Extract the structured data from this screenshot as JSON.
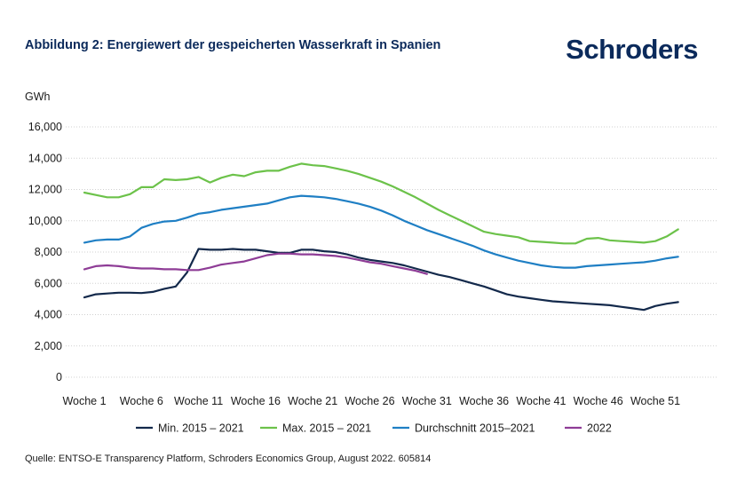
{
  "header": {
    "title": "Abbildung 2: Energiewert der gespeicherten Wasserkraft in Spanien",
    "brand": "Schroders"
  },
  "footer": {
    "source": "Quelle: ENTSO-E Transparency Platform, Schroders Economics Group, August 2022. 605814"
  },
  "chart_data": {
    "type": "line",
    "title": "Abbildung 2: Energiewert der gespeicherten Wasserkraft in Spanien",
    "ylabel": "GWh",
    "xlabel": "",
    "ylim": [
      0,
      16000
    ],
    "y_ticks": [
      "0",
      "2,000",
      "4,000",
      "6,000",
      "8,000",
      "10,000",
      "12,000",
      "14,000",
      "16,000"
    ],
    "y_tick_values": [
      0,
      2000,
      4000,
      6000,
      8000,
      10000,
      12000,
      14000,
      16000
    ],
    "x_range": [
      1,
      53
    ],
    "x_ticks": [
      "Woche 1",
      "Woche 6",
      "Woche 11",
      "Woche 16",
      "Woche 21",
      "Woche 26",
      "Woche 31",
      "Woche 36",
      "Woche 41",
      "Woche 46",
      "Woche 51"
    ],
    "x_tick_values": [
      1,
      6,
      11,
      16,
      21,
      26,
      31,
      36,
      41,
      46,
      51
    ],
    "grid": "horizontal",
    "legend_position": "bottom",
    "series": [
      {
        "name": "Min. 2015 – 2021",
        "color": "#13294b",
        "x": [
          1,
          2,
          3,
          4,
          5,
          6,
          7,
          8,
          9,
          10,
          11,
          12,
          13,
          14,
          15,
          16,
          17,
          18,
          19,
          20,
          21,
          22,
          23,
          24,
          25,
          26,
          27,
          28,
          29,
          30,
          31,
          32,
          33,
          34,
          35,
          36,
          37,
          38,
          39,
          40,
          41,
          42,
          43,
          44,
          45,
          46,
          47,
          48,
          49,
          50,
          51,
          52,
          53
        ],
        "values": [
          5100,
          5300,
          5350,
          5400,
          5400,
          5380,
          5450,
          5650,
          5800,
          6700,
          8200,
          8150,
          8150,
          8200,
          8150,
          8150,
          8050,
          7950,
          7950,
          8150,
          8150,
          8050,
          8000,
          7850,
          7650,
          7500,
          7400,
          7300,
          7150,
          6950,
          6750,
          6550,
          6400,
          6200,
          6000,
          5800,
          5550,
          5300,
          5150,
          5050,
          4950,
          4850,
          4800,
          4750,
          4700,
          4650,
          4600,
          4500,
          4400,
          4300,
          4550,
          4700,
          4800
        ]
      },
      {
        "name": "Max. 2015 – 2021",
        "color": "#6cc24a",
        "x": [
          1,
          2,
          3,
          4,
          5,
          6,
          7,
          8,
          9,
          10,
          11,
          12,
          13,
          14,
          15,
          16,
          17,
          18,
          19,
          20,
          21,
          22,
          23,
          24,
          25,
          26,
          27,
          28,
          29,
          30,
          31,
          32,
          33,
          34,
          35,
          36,
          37,
          38,
          39,
          40,
          41,
          42,
          43,
          44,
          45,
          46,
          47,
          48,
          49,
          50,
          51,
          52,
          53
        ],
        "values": [
          11800,
          11650,
          11500,
          11500,
          11700,
          12150,
          12150,
          12650,
          12600,
          12650,
          12800,
          12450,
          12750,
          12950,
          12850,
          13100,
          13200,
          13200,
          13450,
          13650,
          13550,
          13500,
          13350,
          13200,
          13000,
          12750,
          12500,
          12200,
          11850,
          11500,
          11100,
          10700,
          10350,
          10000,
          9650,
          9300,
          9150,
          9050,
          8950,
          8700,
          8650,
          8600,
          8550,
          8550,
          8850,
          8900,
          8750,
          8700,
          8650,
          8600,
          8700,
          9000,
          9450
        ]
      },
      {
        "name": "Durchschnitt 2015–2021",
        "color": "#1f7fc4",
        "x": [
          1,
          2,
          3,
          4,
          5,
          6,
          7,
          8,
          9,
          10,
          11,
          12,
          13,
          14,
          15,
          16,
          17,
          18,
          19,
          20,
          21,
          22,
          23,
          24,
          25,
          26,
          27,
          28,
          29,
          30,
          31,
          32,
          33,
          34,
          35,
          36,
          37,
          38,
          39,
          40,
          41,
          42,
          43,
          44,
          45,
          46,
          47,
          48,
          49,
          50,
          51,
          52,
          53
        ],
        "values": [
          8600,
          8750,
          8800,
          8800,
          9000,
          9550,
          9800,
          9950,
          10000,
          10200,
          10450,
          10550,
          10700,
          10800,
          10900,
          11000,
          11100,
          11300,
          11500,
          11600,
          11550,
          11500,
          11400,
          11250,
          11100,
          10900,
          10650,
          10350,
          10000,
          9700,
          9400,
          9150,
          8900,
          8650,
          8400,
          8100,
          7850,
          7650,
          7450,
          7300,
          7150,
          7050,
          7000,
          7000,
          7100,
          7150,
          7200,
          7250,
          7300,
          7350,
          7450,
          7600,
          7700
        ]
      },
      {
        "name": "2022",
        "color": "#8e3c96",
        "x": [
          1,
          2,
          3,
          4,
          5,
          6,
          7,
          8,
          9,
          10,
          11,
          12,
          13,
          14,
          15,
          16,
          17,
          18,
          19,
          20,
          21,
          22,
          23,
          24,
          25,
          26,
          27,
          28,
          29,
          30,
          31
        ],
        "values": [
          6900,
          7100,
          7150,
          7100,
          7000,
          6950,
          6950,
          6900,
          6900,
          6850,
          6850,
          7000,
          7200,
          7300,
          7400,
          7600,
          7800,
          7900,
          7900,
          7850,
          7850,
          7800,
          7750,
          7650,
          7500,
          7350,
          7250,
          7100,
          6950,
          6800,
          6600
        ]
      }
    ]
  }
}
